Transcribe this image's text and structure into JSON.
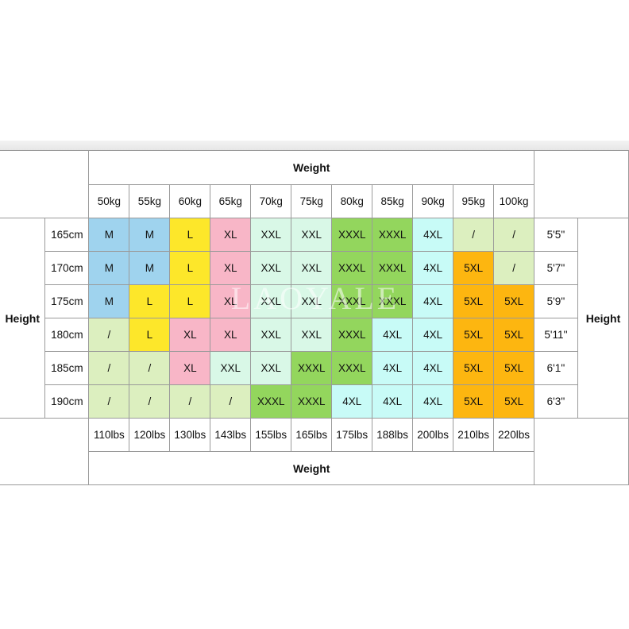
{
  "weight_label": "Weight",
  "height_label": "Height",
  "weights_kg": [
    "50kg",
    "55kg",
    "60kg",
    "65kg",
    "70kg",
    "75kg",
    "80kg",
    "85kg",
    "90kg",
    "95kg",
    "100kg"
  ],
  "weights_lbs": [
    "110lbs",
    "120lbs",
    "130lbs",
    "143lbs",
    "155lbs",
    "165lbs",
    "175lbs",
    "188lbs",
    "200lbs",
    "210lbs",
    "220lbs"
  ],
  "rows": [
    {
      "cm": "165cm",
      "ft": "5'5''",
      "sizes": [
        "M",
        "M",
        "L",
        "XL",
        "XXL",
        "XXL",
        "XXXL",
        "XXXL",
        "4XL",
        "/",
        "/"
      ]
    },
    {
      "cm": "170cm",
      "ft": "5'7''",
      "sizes": [
        "M",
        "M",
        "L",
        "XL",
        "XXL",
        "XXL",
        "XXXL",
        "XXXL",
        "4XL",
        "5XL",
        "/"
      ]
    },
    {
      "cm": "175cm",
      "ft": "5'9''",
      "sizes": [
        "M",
        "L",
        "L",
        "XL",
        "XXL",
        "XXL",
        "XXXL",
        "XXXL",
        "4XL",
        "5XL",
        "5XL"
      ]
    },
    {
      "cm": "180cm",
      "ft": "5'11''",
      "sizes": [
        "/",
        "L",
        "XL",
        "XL",
        "XXL",
        "XXL",
        "XXXL",
        "4XL",
        "4XL",
        "5XL",
        "5XL"
      ]
    },
    {
      "cm": "185cm",
      "ft": "6'1''",
      "sizes": [
        "/",
        "/",
        "XL",
        "XXL",
        "XXL",
        "XXXL",
        "XXXL",
        "4XL",
        "4XL",
        "5XL",
        "5XL"
      ]
    },
    {
      "cm": "190cm",
      "ft": "6'3''",
      "sizes": [
        "/",
        "/",
        "/",
        "/",
        "XXXL",
        "XXXL",
        "4XL",
        "4XL",
        "4XL",
        "5XL",
        "5XL"
      ]
    }
  ],
  "colors": {
    "M": "#9fd3ee",
    "L": "#fde72a",
    "XL": "#f8b6c7",
    "XXL": "#d9f8e7",
    "XXXL": "#93d65d",
    "4XL": "#c8fbf7",
    "5XL": "#fdb610",
    "/": "#dcefbf"
  },
  "watermark": "LAOYALE"
}
